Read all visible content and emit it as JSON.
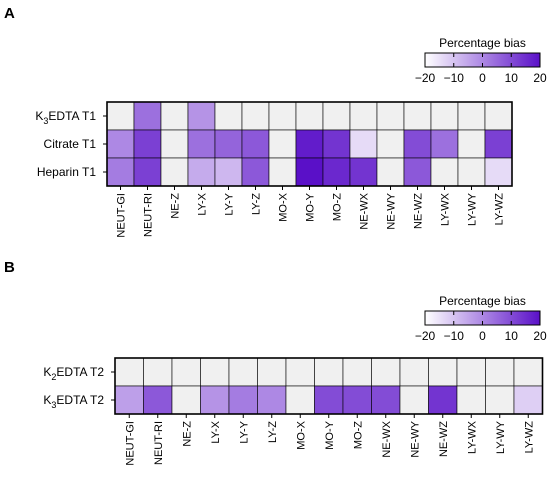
{
  "chart_data": [
    {
      "type": "heatmap",
      "panel_label": "A",
      "rows": [
        {
          "label_main": "K",
          "label_sub": "3",
          "label_rest": "EDTA T1"
        },
        {
          "label_main": "Citrate T1",
          "label_sub": "",
          "label_rest": ""
        },
        {
          "label_main": "Heparin T1",
          "label_sub": "",
          "label_rest": ""
        }
      ],
      "columns": [
        "NEUT-GI",
        "NEUT-RI",
        "NE-Z",
        "LY-X",
        "LY-Y",
        "LY-Z",
        "MO-X",
        "MO-Y",
        "MO-Z",
        "NE-WX",
        "NE-WY",
        "NE-WZ",
        "LY-WX",
        "LY-WY",
        "LY-WZ"
      ],
      "values": [
        [
          null,
          12,
          null,
          9,
          null,
          null,
          null,
          null,
          null,
          null,
          null,
          null,
          null,
          null,
          null
        ],
        [
          10,
          16,
          null,
          12,
          13,
          14,
          null,
          19,
          17,
          -3,
          null,
          15,
          12,
          null,
          16
        ],
        [
          11,
          16,
          null,
          7,
          6,
          14,
          null,
          20,
          18,
          17,
          null,
          14,
          null,
          null,
          -3
        ]
      ],
      "legend": {
        "title": "Percentage bias",
        "ticks": [
          "−20",
          "−10",
          "0",
          "10",
          "20"
        ],
        "min": -20,
        "max": 20
      },
      "colors": {
        "low": "#ffffff",
        "high": "#5a10c8",
        "missing": "#f0f0f0",
        "border": "#000000"
      }
    },
    {
      "type": "heatmap",
      "panel_label": "B",
      "rows": [
        {
          "label_main": "K",
          "label_sub": "2",
          "label_rest": "EDTA T2"
        },
        {
          "label_main": "K",
          "label_sub": "3",
          "label_rest": "EDTA T2"
        }
      ],
      "columns": [
        "NEUT-GI",
        "NEUT-RI",
        "NE-Z",
        "LY-X",
        "LY-Y",
        "LY-Z",
        "MO-X",
        "MO-Y",
        "MO-Z",
        "NE-WX",
        "NE-WY",
        "NE-WZ",
        "LY-WX",
        "LY-WY",
        "LY-WZ"
      ],
      "values": [
        [
          null,
          null,
          null,
          null,
          null,
          null,
          null,
          null,
          null,
          null,
          null,
          null,
          null,
          null,
          null
        ],
        [
          8,
          14,
          null,
          9,
          11,
          10,
          null,
          15,
          15,
          15,
          null,
          17,
          null,
          null,
          4
        ]
      ],
      "legend": {
        "title": "Percentage bias",
        "ticks": [
          "−20",
          "−10",
          "0",
          "10",
          "20"
        ],
        "min": -20,
        "max": 20
      },
      "colors": {
        "low": "#ffffff",
        "high": "#5a10c8",
        "missing": "#f0f0f0",
        "border": "#000000"
      }
    }
  ]
}
